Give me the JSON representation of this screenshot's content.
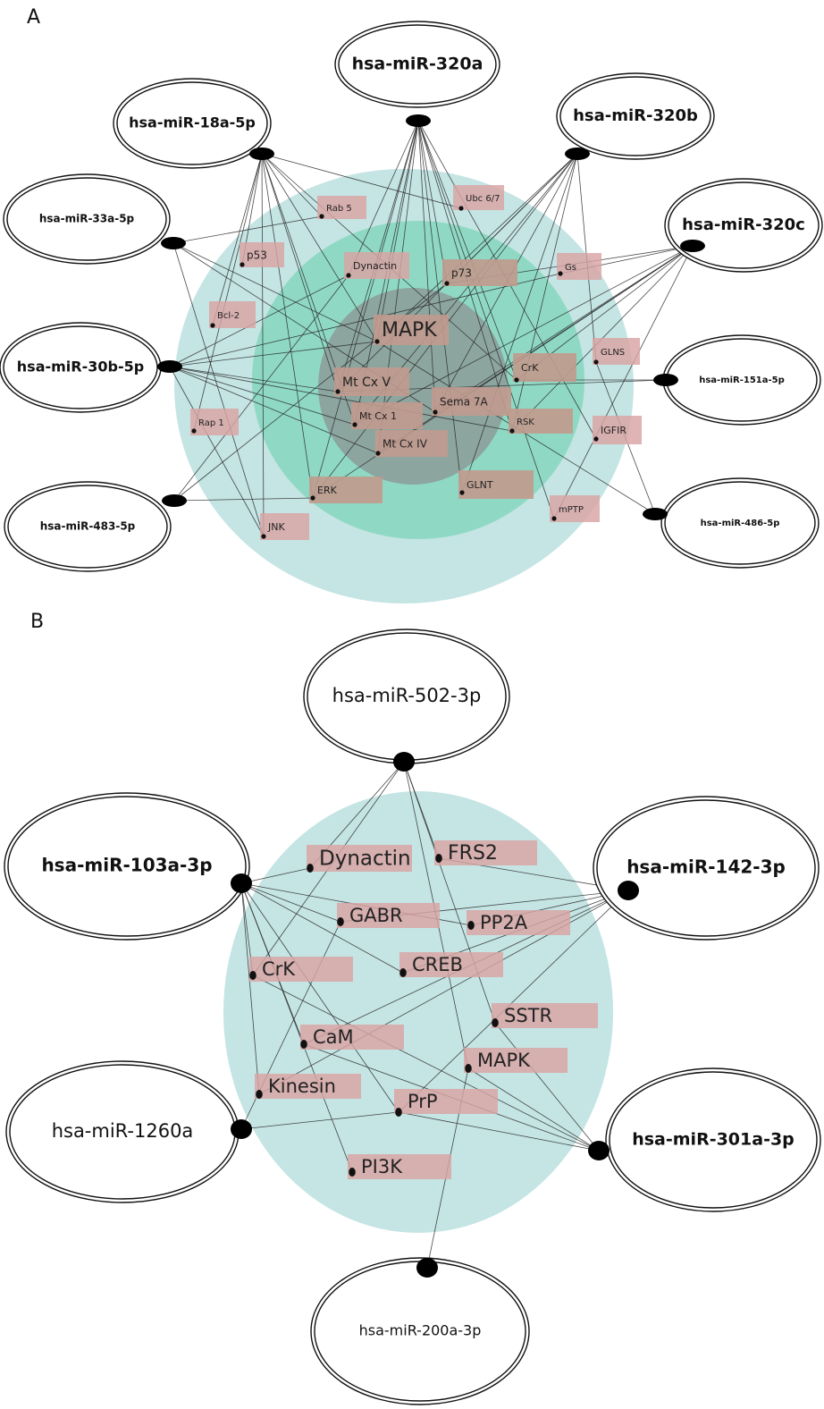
{
  "panels": [
    {
      "id": "A",
      "letter": "A",
      "zones": [
        {
          "name": "outer-zone",
          "color": "#c5e4e4"
        },
        {
          "name": "middle-zone",
          "color": "#8fd9c4"
        },
        {
          "name": "inner-zone",
          "color": "#8da59f"
        }
      ],
      "mirnas": [
        {
          "key": "a-320a",
          "label": "hsa-miR-320a",
          "bold": true
        },
        {
          "key": "a-18a",
          "label": "hsa-miR-18a-5p",
          "bold": true
        },
        {
          "key": "a-320b",
          "label": "hsa-miR-320b",
          "bold": true
        },
        {
          "key": "a-33a",
          "label": "hsa-miR-33a-5p",
          "bold": true
        },
        {
          "key": "a-320c",
          "label": "hsa-miR-320c",
          "bold": true
        },
        {
          "key": "a-30b",
          "label": "hsa-miR-30b-5p",
          "bold": true
        },
        {
          "key": "a-151a",
          "label": "hsa-miR-151a-5p",
          "bold": true
        },
        {
          "key": "a-483",
          "label": "hsa-miR-483-5p",
          "bold": true
        },
        {
          "key": "a-486",
          "label": "hsa-miR-486-5p",
          "bold": true
        }
      ],
      "genes": [
        {
          "key": "a-rab5",
          "label": "Rab 5"
        },
        {
          "key": "a-ubc",
          "label": "Ubc 6/7"
        },
        {
          "key": "a-p53",
          "label": "p53"
        },
        {
          "key": "a-dynactin",
          "label": "Dynactin"
        },
        {
          "key": "a-p73",
          "label": "p73"
        },
        {
          "key": "a-gs",
          "label": "Gs"
        },
        {
          "key": "a-bcl2",
          "label": "Bcl-2"
        },
        {
          "key": "a-mapk",
          "label": "MAPK"
        },
        {
          "key": "a-glns",
          "label": "GLNS"
        },
        {
          "key": "a-mtcxv",
          "label": "Mt Cx V"
        },
        {
          "key": "a-crk",
          "label": "CrK"
        },
        {
          "key": "a-sema7a",
          "label": "Sema 7A"
        },
        {
          "key": "a-mtcx1",
          "label": "Mt Cx 1"
        },
        {
          "key": "a-rap1",
          "label": "Rap 1"
        },
        {
          "key": "a-rsk",
          "label": "RSK"
        },
        {
          "key": "a-igfir",
          "label": "IGFIR"
        },
        {
          "key": "a-mtcxiv",
          "label": "Mt Cx IV"
        },
        {
          "key": "a-erk",
          "label": "ERK"
        },
        {
          "key": "a-glnt",
          "label": "GLNT"
        },
        {
          "key": "a-mptp",
          "label": "mPTP"
        },
        {
          "key": "a-jnk",
          "label": "JNK"
        }
      ]
    },
    {
      "id": "B",
      "letter": "B",
      "zones": [
        {
          "name": "single-zone",
          "color": "#c5e4e4"
        }
      ],
      "mirnas": [
        {
          "key": "b-502",
          "label": "hsa-miR-502-3p",
          "bold": false
        },
        {
          "key": "b-103a",
          "label": "hsa-miR-103a-3p",
          "bold": true
        },
        {
          "key": "b-142",
          "label": "hsa-miR-142-3p",
          "bold": true
        },
        {
          "key": "b-1260a",
          "label": "hsa-miR-1260a",
          "bold": false
        },
        {
          "key": "b-301a",
          "label": "hsa-miR-301a-3p",
          "bold": true
        },
        {
          "key": "b-200a",
          "label": "hsa-miR-200a-3p",
          "bold": false
        }
      ],
      "genes": [
        {
          "key": "b-dynactin",
          "label": "Dynactin"
        },
        {
          "key": "b-frs2",
          "label": "FRS2"
        },
        {
          "key": "b-gabr",
          "label": "GABR"
        },
        {
          "key": "b-pp2a",
          "label": "PP2A"
        },
        {
          "key": "b-crk",
          "label": "CrK"
        },
        {
          "key": "b-creb",
          "label": "CREB"
        },
        {
          "key": "b-sstr",
          "label": "SSTR"
        },
        {
          "key": "b-cam",
          "label": "CaM"
        },
        {
          "key": "b-mapk",
          "label": "MAPK"
        },
        {
          "key": "b-kinesin",
          "label": "Kinesin"
        },
        {
          "key": "b-prp",
          "label": "PrP"
        },
        {
          "key": "b-pi3k",
          "label": "PI3K"
        }
      ]
    }
  ]
}
